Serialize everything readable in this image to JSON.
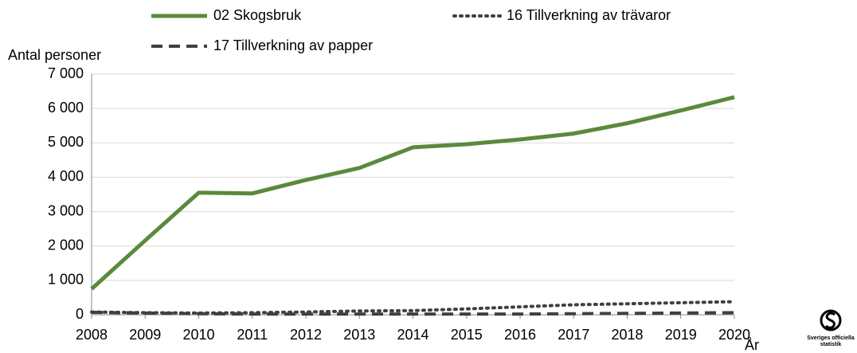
{
  "chart_data": {
    "type": "line",
    "ylabel": "Antal personer",
    "xlabel": "År",
    "x": [
      2008,
      2009,
      2010,
      2011,
      2012,
      2013,
      2014,
      2015,
      2016,
      2017,
      2018,
      2019,
      2020
    ],
    "xlim": [
      2008,
      2020
    ],
    "xticks": [
      2008,
      2009,
      2010,
      2011,
      2012,
      2013,
      2014,
      2015,
      2016,
      2017,
      2018,
      2019,
      2020
    ],
    "ylim": [
      0,
      7000
    ],
    "yticks": [
      0,
      {
        "value": 1000,
        "label": "1 000"
      },
      {
        "value": 2000,
        "label": "2 000"
      },
      {
        "value": 3000,
        "label": "3 000"
      },
      {
        "value": 4000,
        "label": "4 000"
      },
      {
        "value": 5000,
        "label": "5 000"
      },
      {
        "value": 6000,
        "label": "6 000"
      },
      {
        "value": 7000,
        "label": "7 000"
      }
    ],
    "grid": true,
    "series": [
      {
        "name": "02 Skogsbruk",
        "color": "#5a8a3c",
        "style": "solid",
        "values": [
          750,
          2160,
          3550,
          3530,
          3920,
          4270,
          4870,
          4960,
          5100,
          5270,
          5570,
          5940,
          6330
        ]
      },
      {
        "name": "16 Tillverkning av trävaror",
        "color": "#404040",
        "style": "dotted",
        "values": [
          80,
          60,
          50,
          60,
          80,
          110,
          120,
          170,
          230,
          290,
          320,
          350,
          380
        ]
      },
      {
        "name": "17 Tillverkning av papper",
        "color": "#404040",
        "style": "dashed",
        "values": [
          70,
          50,
          30,
          20,
          20,
          20,
          20,
          20,
          20,
          30,
          40,
          50,
          60
        ]
      }
    ]
  },
  "logo": {
    "lines": [
      "Sveriges officiella",
      "statistik"
    ]
  }
}
